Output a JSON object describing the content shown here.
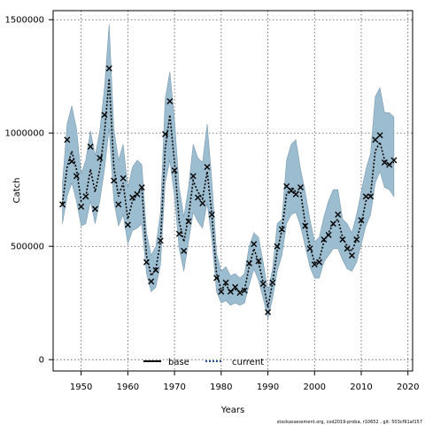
{
  "chart_data": {
    "type": "line",
    "title": "",
    "xlabel": "Years",
    "ylabel": "Catch",
    "xlim": [
      1944,
      2021
    ],
    "ylim": [
      -50000,
      1540000
    ],
    "xticks": [
      1950,
      1960,
      1970,
      1980,
      1990,
      2000,
      2010,
      2020
    ],
    "yticks": [
      0,
      500000,
      1000000,
      1500000
    ],
    "grid": true,
    "legend": {
      "placement": "bottom-center",
      "entries": [
        {
          "label": "base",
          "style": "solid",
          "color": "#000000"
        },
        {
          "label": "current",
          "style": "dotted",
          "color": "#1f4e9a"
        }
      ]
    },
    "band_color": "#9cbdd0",
    "band_edge_color": "#7a9bb0",
    "x": [
      1946,
      1947,
      1948,
      1949,
      1950,
      1951,
      1952,
      1953,
      1954,
      1955,
      1956,
      1957,
      1958,
      1959,
      1960,
      1961,
      1962,
      1963,
      1964,
      1965,
      1966,
      1967,
      1968,
      1969,
      1970,
      1971,
      1972,
      1973,
      1974,
      1975,
      1976,
      1977,
      1978,
      1979,
      1980,
      1981,
      1982,
      1983,
      1984,
      1985,
      1986,
      1987,
      1988,
      1989,
      1990,
      1991,
      1992,
      1993,
      1994,
      1995,
      1996,
      1997,
      1998,
      1999,
      2000,
      2001,
      2002,
      2003,
      2004,
      2005,
      2006,
      2007,
      2008,
      2009,
      2010,
      2011,
      2012,
      2013,
      2014,
      2015,
      2016,
      2017
    ],
    "series": [
      {
        "name": "base",
        "kind": "observed-markers",
        "marker": "x",
        "values": [
          685000,
          970000,
          875000,
          810000,
          675000,
          720000,
          940000,
          665000,
          890000,
          1080000,
          1285000,
          790000,
          685000,
          800000,
          595000,
          715000,
          730000,
          760000,
          430000,
          345000,
          395000,
          525000,
          995000,
          1140000,
          835000,
          555000,
          480000,
          610000,
          810000,
          715000,
          690000,
          850000,
          640000,
          360000,
          300000,
          340000,
          300000,
          320000,
          295000,
          305000,
          425000,
          510000,
          435000,
          335000,
          210000,
          340000,
          500000,
          575000,
          765000,
          745000,
          730000,
          760000,
          590000,
          490000,
          420000,
          430000,
          530000,
          550000,
          600000,
          640000,
          530000,
          490000,
          460000,
          530000,
          615000,
          720000,
          720000,
          970000,
          990000,
          870000,
          860000,
          880000
        ]
      },
      {
        "name": "current",
        "kind": "estimate-line",
        "values": [
          690000,
          850000,
          920000,
          840000,
          700000,
          720000,
          840000,
          740000,
          840000,
          1000000,
          1240000,
          850000,
          720000,
          780000,
          620000,
          700000,
          730000,
          760000,
          460000,
          370000,
          400000,
          520000,
          930000,
          1080000,
          870000,
          610000,
          520000,
          630000,
          790000,
          740000,
          710000,
          830000,
          640000,
          380000,
          310000,
          330000,
          300000,
          310000,
          300000,
          310000,
          410000,
          490000,
          430000,
          340000,
          230000,
          340000,
          480000,
          570000,
          730000,
          760000,
          740000,
          740000,
          600000,
          500000,
          430000,
          440000,
          520000,
          560000,
          600000,
          620000,
          540000,
          500000,
          480000,
          530000,
          600000,
          700000,
          730000,
          920000,
          960000,
          880000,
          860000,
          870000
        ]
      },
      {
        "name": "uncertainty-upper",
        "kind": "band-upper",
        "values": [
          780000,
          1040000,
          1120000,
          1020000,
          820000,
          880000,
          1010000,
          900000,
          1010000,
          1200000,
          1480000,
          1020000,
          880000,
          950000,
          760000,
          850000,
          880000,
          860000,
          560000,
          460000,
          500000,
          650000,
          1150000,
          1270000,
          1060000,
          760000,
          630000,
          760000,
          950000,
          890000,
          870000,
          1040000,
          790000,
          470000,
          390000,
          410000,
          370000,
          380000,
          360000,
          380000,
          500000,
          560000,
          540000,
          430000,
          300000,
          400000,
          600000,
          620000,
          880000,
          950000,
          970000,
          840000,
          740000,
          620000,
          520000,
          540000,
          630000,
          700000,
          750000,
          750000,
          620000,
          600000,
          560000,
          640000,
          740000,
          840000,
          910000,
          1160000,
          1200000,
          1090000,
          1090000,
          1070000
        ]
      },
      {
        "name": "uncertainty-lower",
        "kind": "band-lower",
        "values": [
          600000,
          720000,
          780000,
          700000,
          590000,
          600000,
          700000,
          600000,
          700000,
          840000,
          1020000,
          700000,
          590000,
          640000,
          510000,
          570000,
          580000,
          600000,
          380000,
          300000,
          320000,
          420000,
          780000,
          880000,
          720000,
          490000,
          390000,
          520000,
          650000,
          610000,
          580000,
          690000,
          530000,
          300000,
          250000,
          260000,
          240000,
          250000,
          240000,
          250000,
          330000,
          400000,
          350000,
          270000,
          180000,
          270000,
          390000,
          460000,
          600000,
          640000,
          650000,
          590000,
          500000,
          410000,
          360000,
          360000,
          430000,
          460000,
          490000,
          490000,
          440000,
          400000,
          390000,
          430000,
          510000,
          590000,
          640000,
          780000,
          830000,
          760000,
          750000,
          720000
        ]
      }
    ],
    "footnote": "stockassessment.org, cod2019-proba, r10652 , git: 503cf91af157"
  }
}
